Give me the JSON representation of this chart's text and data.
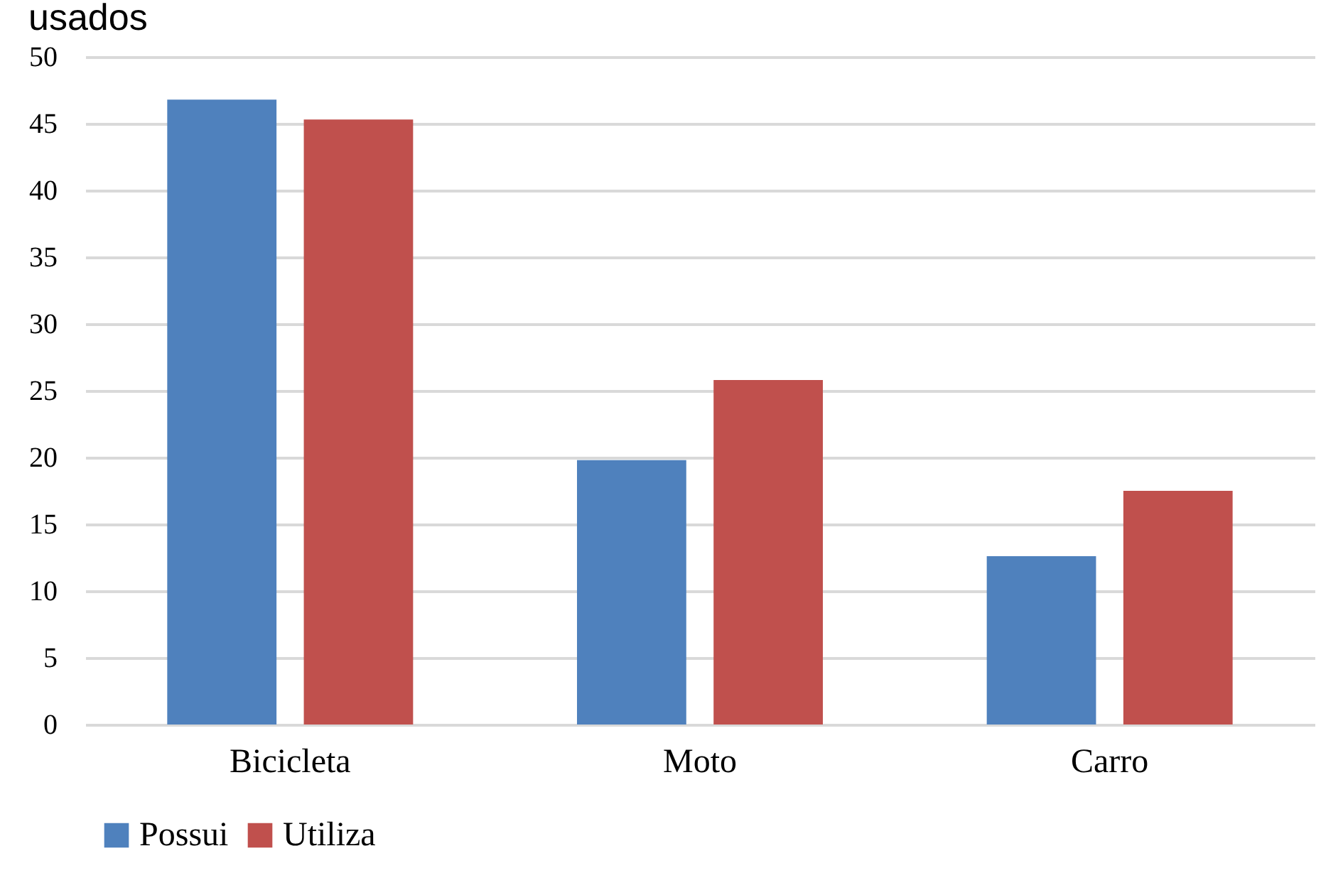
{
  "chart_data": {
    "type": "bar",
    "title": "usados",
    "categories": [
      "Bicicleta",
      "Moto",
      "Carro"
    ],
    "series": [
      {
        "name": "Possui",
        "color": "#4f81bd",
        "values": [
          46.8,
          19.8,
          12.6
        ]
      },
      {
        "name": "Utiliza",
        "color": "#c0504d",
        "values": [
          45.3,
          25.8,
          17.5
        ]
      }
    ],
    "ylim": [
      0,
      50
    ],
    "yticks": [
      0,
      5,
      10,
      15,
      20,
      25,
      30,
      35,
      40,
      45,
      50
    ],
    "grid": "y",
    "legend": "bottom"
  }
}
